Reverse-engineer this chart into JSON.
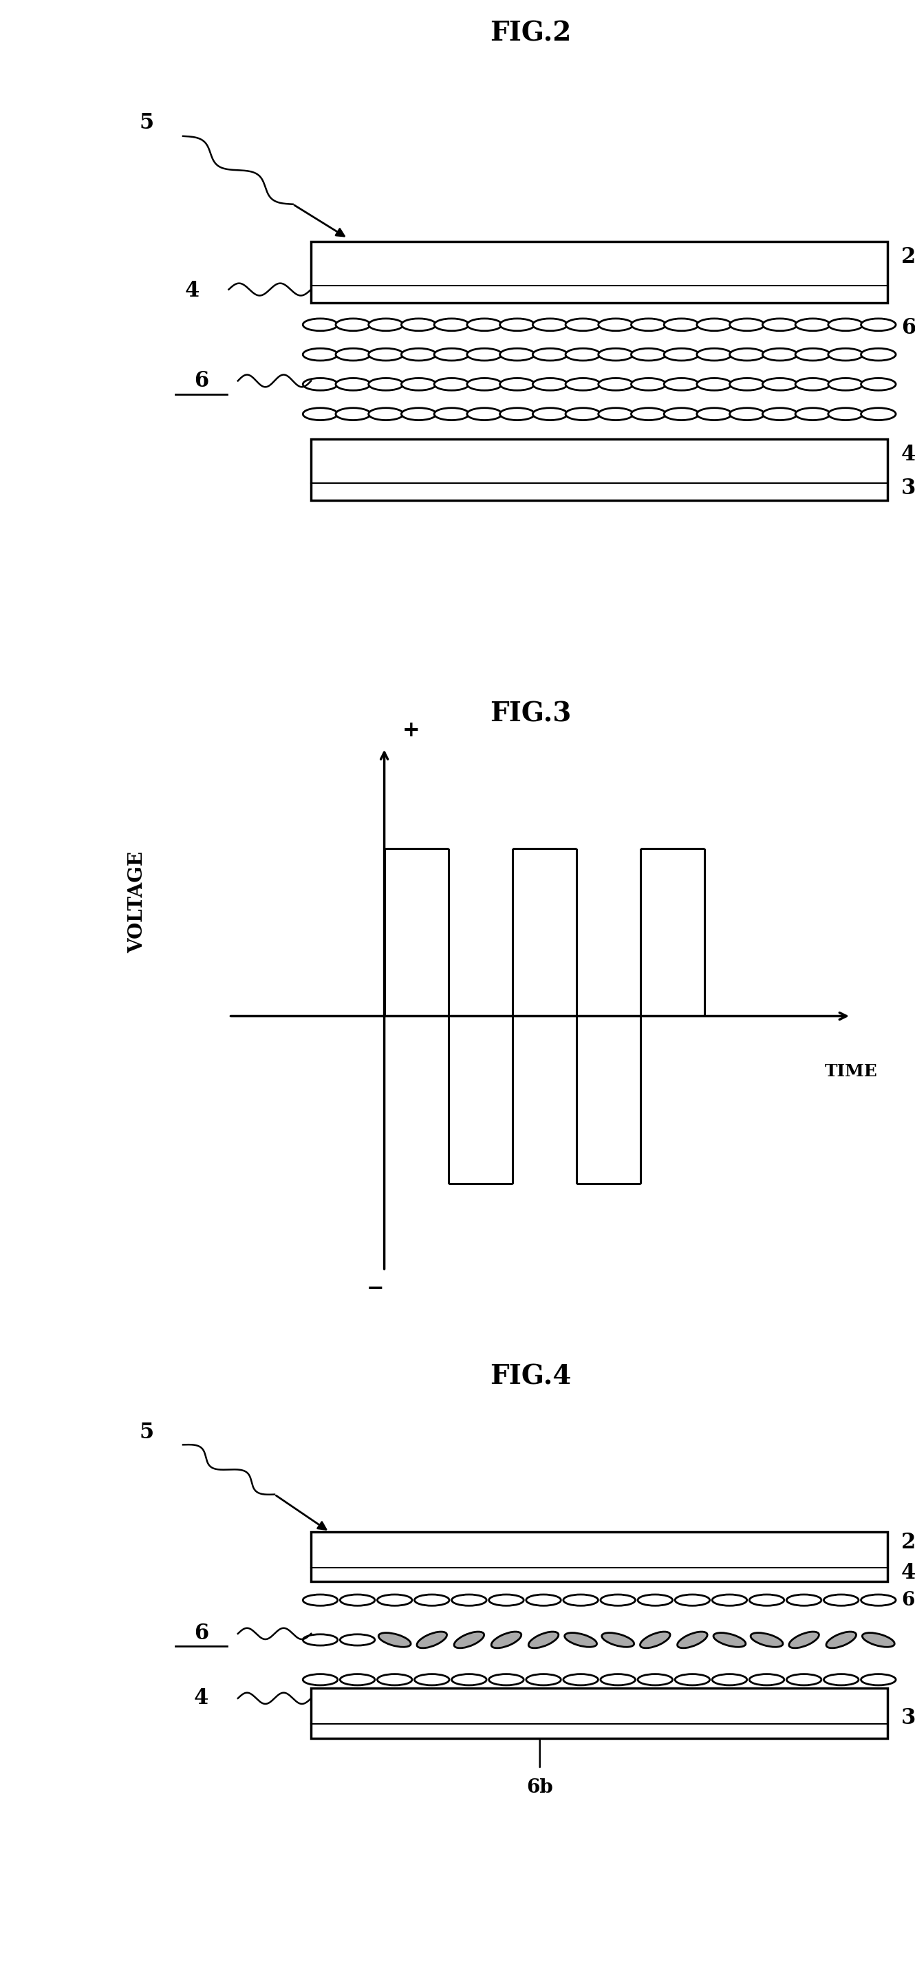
{
  "fig_title1": "FIG.2",
  "fig_title2": "FIG.3",
  "fig_title3": "FIG.4",
  "background_color": "#ffffff",
  "title_fontsize": 28,
  "annotation_fontsize": 22,
  "voltage_label_fontsize": 20,
  "time_label_fontsize": 18
}
